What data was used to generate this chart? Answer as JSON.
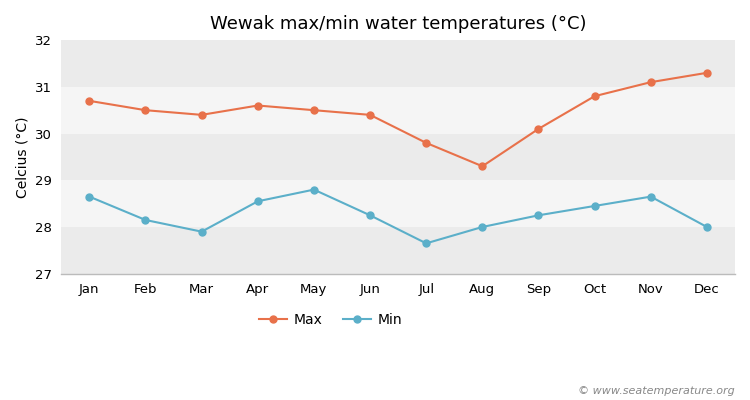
{
  "title": "Wewak max/min water temperatures (°C)",
  "ylabel": "Celcius (°C)",
  "months": [
    "Jan",
    "Feb",
    "Mar",
    "Apr",
    "May",
    "Jun",
    "Jul",
    "Aug",
    "Sep",
    "Oct",
    "Nov",
    "Dec"
  ],
  "max_temps": [
    30.7,
    30.5,
    30.4,
    30.6,
    30.5,
    30.4,
    29.8,
    29.3,
    30.1,
    30.8,
    31.1,
    31.3
  ],
  "min_temps": [
    28.65,
    28.15,
    27.9,
    28.55,
    28.8,
    28.25,
    27.65,
    28.0,
    28.25,
    28.45,
    28.65,
    28.0
  ],
  "max_color": "#e8714a",
  "min_color": "#5bafc9",
  "bg_color": "#ffffff",
  "band_colors": [
    "#ebebeb",
    "#f5f5f5"
  ],
  "ylim": [
    27,
    32
  ],
  "yticks": [
    27,
    28,
    29,
    30,
    31,
    32
  ],
  "legend_labels": [
    "Max",
    "Min"
  ],
  "watermark": "© www.seatemperature.org",
  "title_fontsize": 13,
  "label_fontsize": 10,
  "tick_fontsize": 9.5,
  "watermark_fontsize": 8
}
